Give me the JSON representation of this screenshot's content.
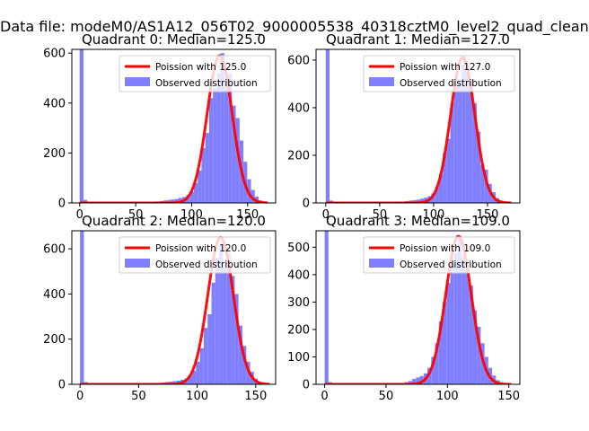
{
  "figure": {
    "suptitle": "Data file: modeM0/AS1A12_056T02_9000005538_40318cztM0_level2_quad_clean",
    "colors": {
      "poisson": "#ff0000",
      "observed": "#8080ff"
    }
  },
  "chart_data": [
    {
      "type": "bar",
      "title": "Quadrant 0: Median=125.0",
      "xlim": [
        -7,
        175
      ],
      "ylim": [
        0,
        615
      ],
      "xticks": [
        0,
        50,
        100,
        150
      ],
      "yticks": [
        0,
        200,
        400,
        600
      ],
      "legend": {
        "placement": "upper-right",
        "entries": [
          "Poission with 125.0",
          "Observed distribution"
        ]
      },
      "series": [
        {
          "name": "Poission with 125.0",
          "type": "line",
          "mean": 125.0,
          "peak": 590,
          "x_range": [
            0,
            168
          ]
        },
        {
          "name": "Observed distribution",
          "type": "hist",
          "bin_width": 3.4,
          "bins": [
            [
              0,
              615
            ],
            [
              3.4,
              12
            ],
            [
              6.8,
              5
            ],
            [
              10.2,
              4
            ],
            [
              13.6,
              4
            ],
            [
              17,
              4
            ],
            [
              20.4,
              4
            ],
            [
              23.8,
              4
            ],
            [
              27.2,
              4
            ],
            [
              30.6,
              4
            ],
            [
              34,
              4
            ],
            [
              37.4,
              4
            ],
            [
              40.8,
              4
            ],
            [
              44.2,
              4
            ],
            [
              47.6,
              4
            ],
            [
              51,
              4
            ],
            [
              54.4,
              4
            ],
            [
              57.8,
              4
            ],
            [
              61.2,
              4
            ],
            [
              64.6,
              4
            ],
            [
              68,
              6
            ],
            [
              71.4,
              8
            ],
            [
              74.8,
              10
            ],
            [
              78.2,
              12
            ],
            [
              81.6,
              14
            ],
            [
              85,
              16
            ],
            [
              88.4,
              20
            ],
            [
              91.8,
              24
            ],
            [
              95.2,
              32
            ],
            [
              98.6,
              45
            ],
            [
              102,
              80
            ],
            [
              105.4,
              130
            ],
            [
              108.8,
              220
            ],
            [
              112.2,
              280
            ],
            [
              115.6,
              420
            ],
            [
              119,
              460
            ],
            [
              122.4,
              520
            ],
            [
              125.8,
              600
            ],
            [
              129.2,
              480
            ],
            [
              132.6,
              520
            ],
            [
              136,
              390
            ],
            [
              139.4,
              340
            ],
            [
              142.8,
              250
            ],
            [
              146.2,
              165
            ],
            [
              149.6,
              95
            ],
            [
              153,
              52
            ],
            [
              156.4,
              25
            ],
            [
              159.8,
              10
            ],
            [
              163.2,
              4
            ]
          ]
        }
      ]
    },
    {
      "type": "bar",
      "title": "Quadrant 1: Median=127.0",
      "xlim": [
        -9,
        180
      ],
      "ylim": [
        0,
        645
      ],
      "xticks": [
        0,
        50,
        100,
        150
      ],
      "yticks": [
        0,
        200,
        400,
        600
      ],
      "legend": {
        "placement": "upper-right",
        "entries": [
          "Poission with 127.0",
          "Observed distribution"
        ]
      },
      "series": [
        {
          "name": "Poission with 127.0",
          "type": "line",
          "mean": 127.0,
          "peak": 610,
          "x_range": [
            0,
            172
          ]
        },
        {
          "name": "Observed distribution",
          "type": "hist",
          "bin_width": 3.5,
          "bins": [
            [
              0,
              645
            ],
            [
              3.5,
              10
            ],
            [
              7,
              5
            ],
            [
              10.5,
              4
            ],
            [
              14,
              4
            ],
            [
              17.5,
              4
            ],
            [
              21,
              4
            ],
            [
              24.5,
              4
            ],
            [
              28,
              4
            ],
            [
              31.5,
              4
            ],
            [
              35,
              4
            ],
            [
              38.5,
              4
            ],
            [
              42,
              4
            ],
            [
              45.5,
              4
            ],
            [
              49,
              4
            ],
            [
              52.5,
              4
            ],
            [
              56,
              4
            ],
            [
              59.5,
              4
            ],
            [
              63,
              4
            ],
            [
              66.5,
              4
            ],
            [
              70,
              6
            ],
            [
              73.5,
              8
            ],
            [
              77,
              10
            ],
            [
              80.5,
              12
            ],
            [
              84,
              14
            ],
            [
              87.5,
              18
            ],
            [
              91,
              22
            ],
            [
              94.5,
              28
            ],
            [
              98,
              40
            ],
            [
              101.5,
              70
            ],
            [
              105,
              120
            ],
            [
              108.5,
              210
            ],
            [
              112,
              270
            ],
            [
              115.5,
              420
            ],
            [
              119,
              500
            ],
            [
              122.5,
              520
            ],
            [
              126,
              580
            ],
            [
              129.5,
              560
            ],
            [
              133,
              520
            ],
            [
              136.5,
              420
            ],
            [
              140,
              300
            ],
            [
              143.5,
              160
            ],
            [
              147,
              140
            ],
            [
              150.5,
              80
            ],
            [
              154,
              45
            ],
            [
              157.5,
              20
            ],
            [
              161,
              10
            ],
            [
              164.5,
              4
            ]
          ]
        }
      ]
    },
    {
      "type": "bar",
      "title": "Quadrant 2: Median=120.0",
      "xlim": [
        -7,
        167
      ],
      "ylim": [
        0,
        680
      ],
      "xticks": [
        0,
        50,
        100,
        150
      ],
      "yticks": [
        0,
        200,
        400,
        600
      ],
      "legend": {
        "placement": "upper-right",
        "entries": [
          "Poission with 120.0",
          "Observed distribution"
        ]
      },
      "series": [
        {
          "name": "Poission with 120.0",
          "type": "line",
          "mean": 120.0,
          "peak": 650,
          "x_range": [
            0,
            162
          ]
        },
        {
          "name": "Observed distribution",
          "type": "hist",
          "bin_width": 3.3,
          "bins": [
            [
              0,
              680
            ],
            [
              3.3,
              10
            ],
            [
              6.6,
              5
            ],
            [
              9.9,
              4
            ],
            [
              13.2,
              4
            ],
            [
              16.5,
              4
            ],
            [
              19.8,
              4
            ],
            [
              23.1,
              4
            ],
            [
              26.4,
              4
            ],
            [
              29.7,
              4
            ],
            [
              33,
              4
            ],
            [
              36.3,
              4
            ],
            [
              39.6,
              4
            ],
            [
              42.9,
              4
            ],
            [
              46.2,
              4
            ],
            [
              49.5,
              4
            ],
            [
              52.8,
              4
            ],
            [
              56.1,
              4
            ],
            [
              59.4,
              4
            ],
            [
              62.7,
              4
            ],
            [
              66,
              5
            ],
            [
              69.3,
              8
            ],
            [
              72.6,
              10
            ],
            [
              75.9,
              12
            ],
            [
              79.2,
              14
            ],
            [
              82.5,
              16
            ],
            [
              85.8,
              20
            ],
            [
              89.1,
              26
            ],
            [
              92.4,
              38
            ],
            [
              95.7,
              60
            ],
            [
              99,
              100
            ],
            [
              102.3,
              160
            ],
            [
              105.6,
              250
            ],
            [
              108.9,
              310
            ],
            [
              112.2,
              450
            ],
            [
              115.5,
              560
            ],
            [
              118.8,
              620
            ],
            [
              122.1,
              520
            ],
            [
              125.4,
              580
            ],
            [
              128.7,
              480
            ],
            [
              132,
              400
            ],
            [
              135.3,
              260
            ],
            [
              138.6,
              170
            ],
            [
              141.9,
              100
            ],
            [
              145.2,
              55
            ],
            [
              148.5,
              25
            ],
            [
              151.8,
              10
            ],
            [
              155.1,
              4
            ]
          ]
        }
      ]
    },
    {
      "type": "bar",
      "title": "Quadrant 3: Median=109.0",
      "xlim": [
        -7,
        159
      ],
      "ylim": [
        0,
        560
      ],
      "xticks": [
        0,
        50,
        100,
        150
      ],
      "yticks": [
        0,
        100,
        200,
        300,
        400,
        500
      ],
      "legend": {
        "placement": "upper-right",
        "entries": [
          "Poission with 109.0",
          "Observed distribution"
        ]
      },
      "series": [
        {
          "name": "Poission with 109.0",
          "type": "line",
          "mean": 109.0,
          "peak": 540,
          "x_range": [
            0,
            152
          ]
        },
        {
          "name": "Observed distribution",
          "type": "hist",
          "bin_width": 3.1,
          "bins": [
            [
              0,
              560
            ],
            [
              3.1,
              8
            ],
            [
              6.2,
              4
            ],
            [
              9.3,
              3
            ],
            [
              12.4,
              3
            ],
            [
              15.5,
              3
            ],
            [
              18.6,
              3
            ],
            [
              21.7,
              3
            ],
            [
              24.8,
              3
            ],
            [
              27.9,
              3
            ],
            [
              31,
              3
            ],
            [
              34.1,
              3
            ],
            [
              37.2,
              3
            ],
            [
              40.3,
              3
            ],
            [
              43.4,
              3
            ],
            [
              46.5,
              3
            ],
            [
              49.6,
              3
            ],
            [
              52.7,
              3
            ],
            [
              55.8,
              3
            ],
            [
              58.9,
              4
            ],
            [
              62,
              5
            ],
            [
              65.1,
              8
            ],
            [
              68.2,
              12
            ],
            [
              71.3,
              20
            ],
            [
              74.4,
              25
            ],
            [
              77.5,
              30
            ],
            [
              80.6,
              40
            ],
            [
              83.7,
              60
            ],
            [
              86.8,
              100
            ],
            [
              89.9,
              150
            ],
            [
              93,
              230
            ],
            [
              96.1,
              300
            ],
            [
              99.2,
              370
            ],
            [
              102.3,
              440
            ],
            [
              105.4,
              480
            ],
            [
              108.5,
              540
            ],
            [
              111.6,
              470
            ],
            [
              114.7,
              420
            ],
            [
              117.8,
              360
            ],
            [
              120.9,
              270
            ],
            [
              124,
              210
            ],
            [
              127.1,
              150
            ],
            [
              130.2,
              100
            ],
            [
              133.3,
              60
            ],
            [
              136.4,
              32
            ],
            [
              139.5,
              15
            ],
            [
              142.6,
              6
            ]
          ]
        }
      ]
    }
  ]
}
